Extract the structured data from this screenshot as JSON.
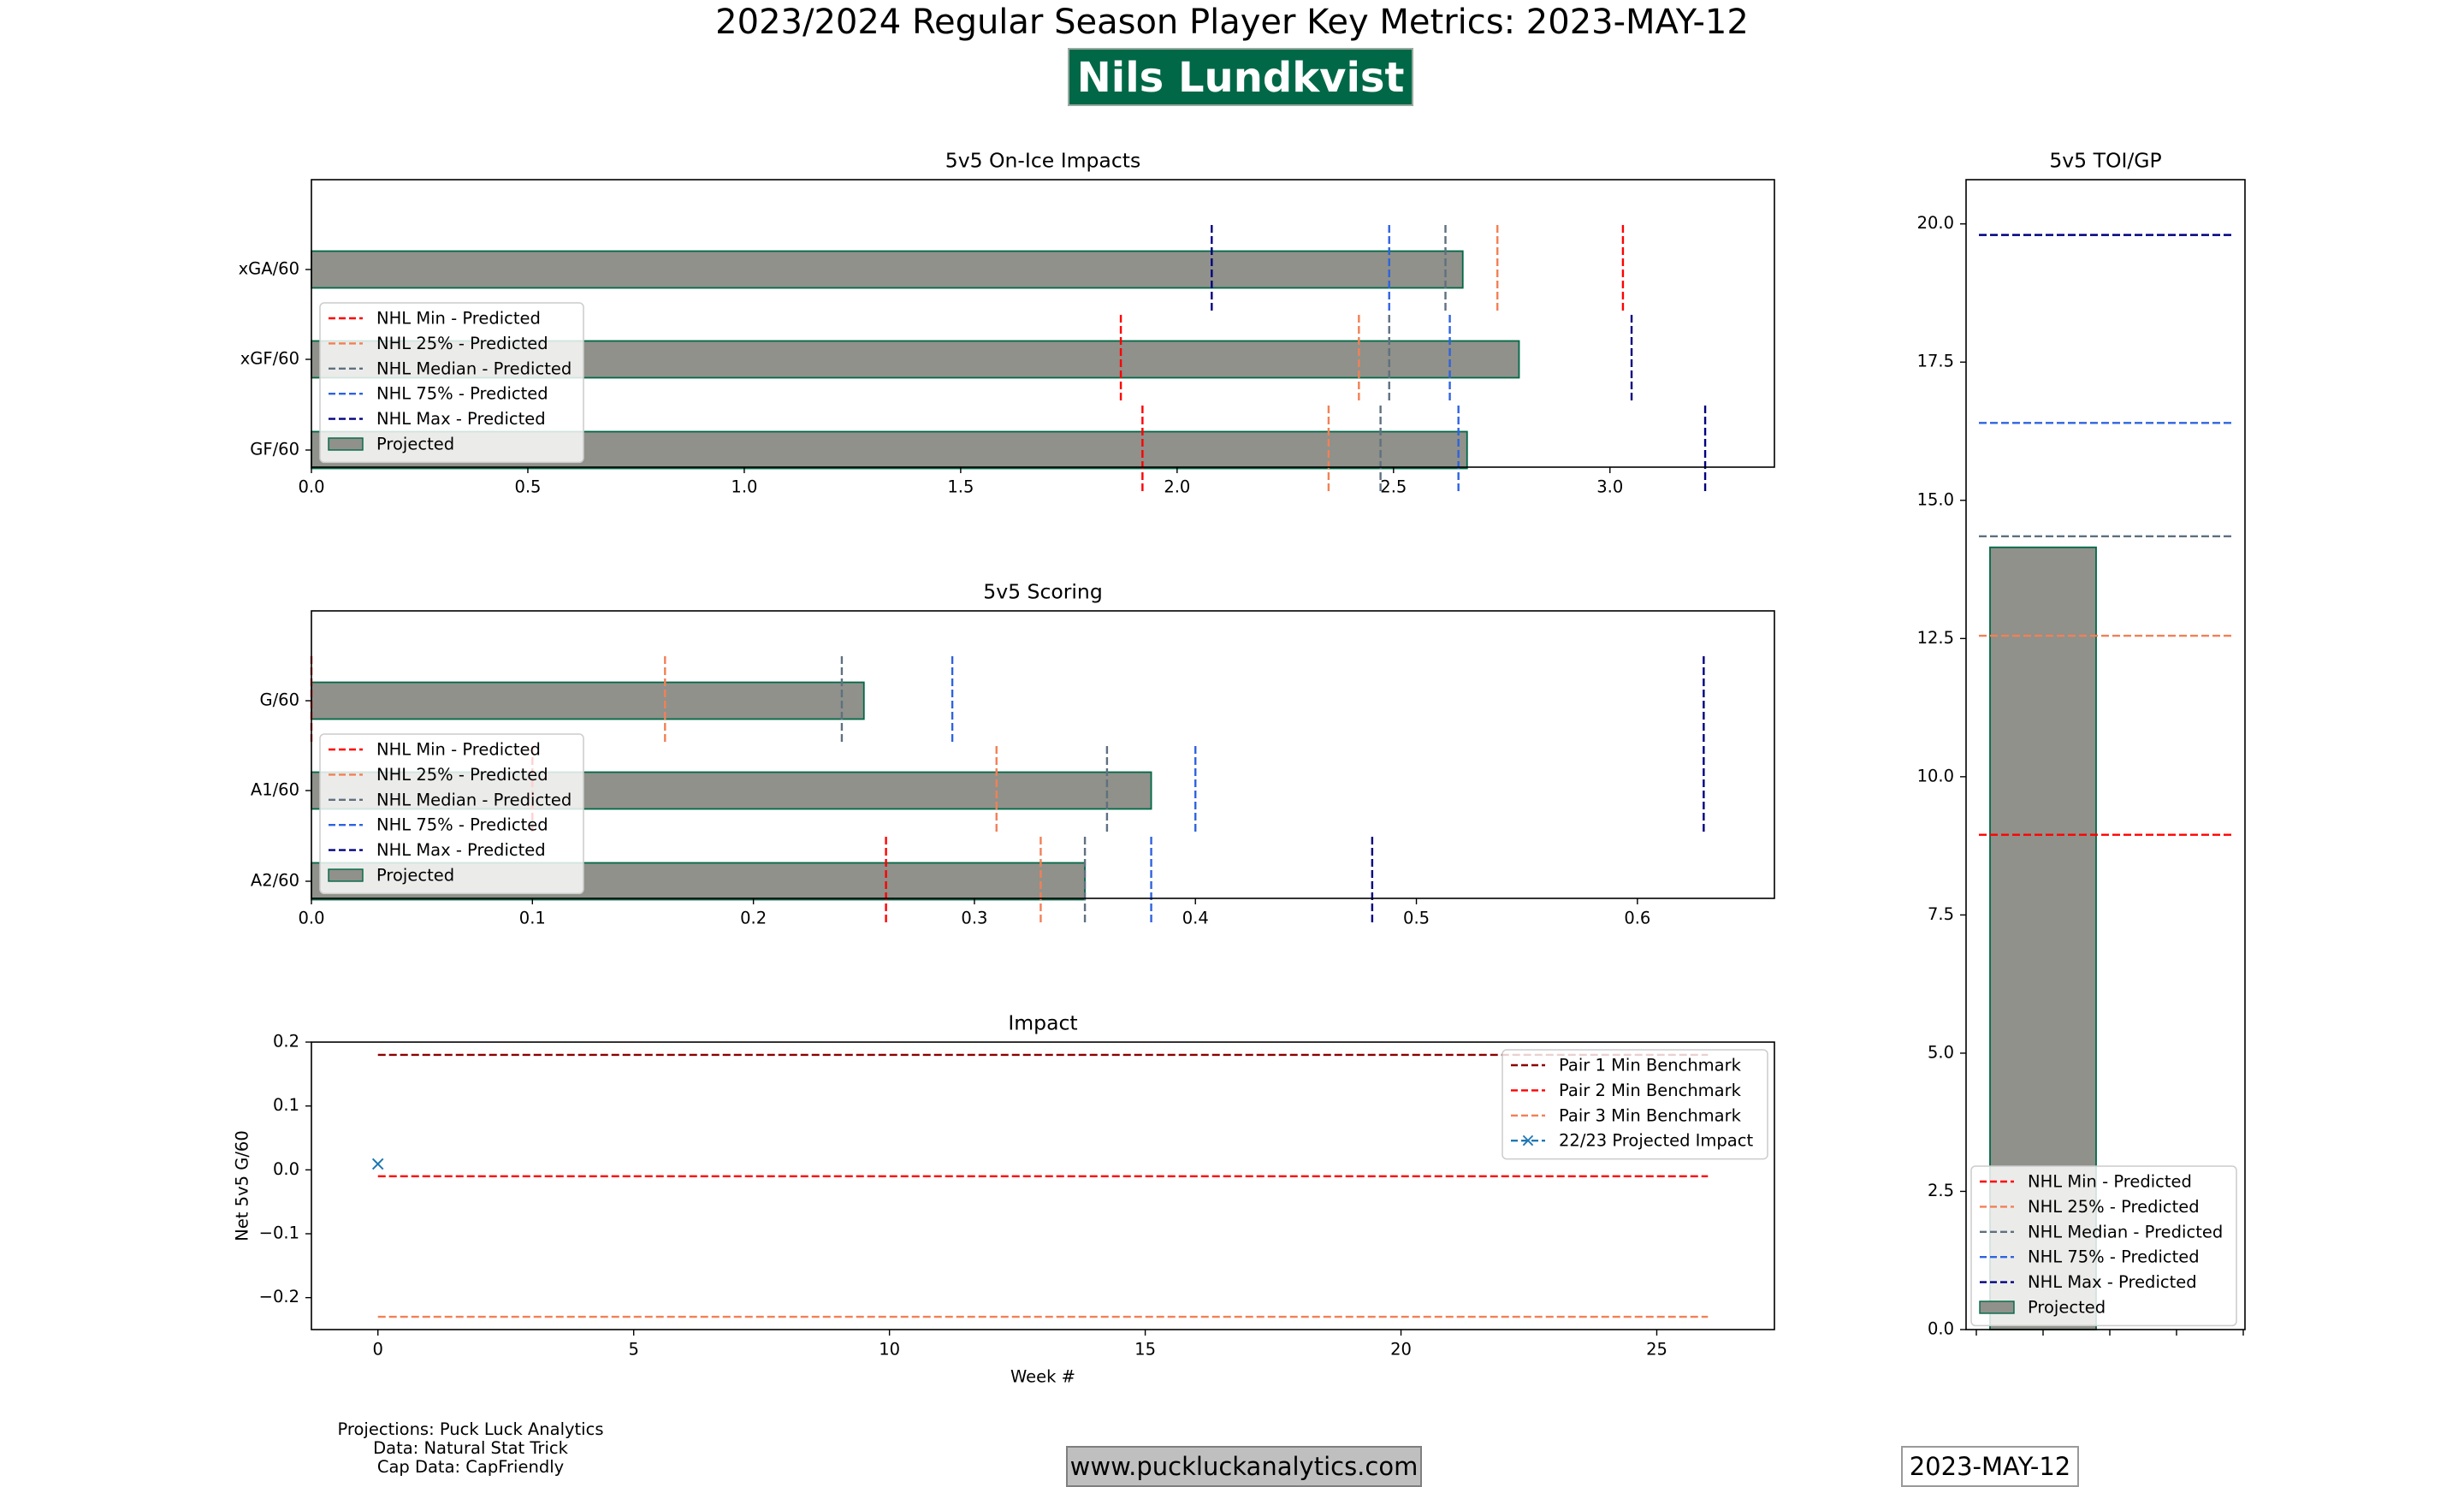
{
  "header": {
    "title": "2023/2024 Regular Season Player Key Metrics: 2023-MAY-12",
    "player": "Nils Lundkvist"
  },
  "footer": {
    "credits": [
      "Projections: Puck Luck Analytics",
      "Data: Natural Stat Trick",
      "Cap Data: CapFriendly"
    ],
    "url": "www.puckluckanalytics.com",
    "date": "2023-MAY-12"
  },
  "colors": {
    "bar_fill": "#8f918a",
    "bar_edge": "#006847",
    "nhl_min": "#ff0000",
    "nhl_25": "#f28055",
    "nhl_median": "#5f7080",
    "nhl_75": "#2e63e0",
    "nhl_max": "#00007f",
    "pair1": "#8b0000",
    "pair2": "#ff0000",
    "pair3": "#f28055",
    "impact": "#1f77b4"
  },
  "chart_data": [
    {
      "id": "onice",
      "type": "bar",
      "orientation": "horizontal",
      "title": "5v5 On-Ice Impacts",
      "categories": [
        "xGA/60",
        "xGF/60",
        "GF/60"
      ],
      "xlim": [
        0,
        3.38
      ],
      "xticks": [
        0.0,
        0.5,
        1.0,
        1.5,
        2.0,
        2.5,
        3.0
      ],
      "xtick_labels": [
        "0.0",
        "0.5",
        "1.0",
        "1.5",
        "2.0",
        "2.5",
        "3.0"
      ],
      "projected": [
        2.66,
        2.79,
        2.67
      ],
      "benchmarks": [
        {
          "name": "NHL Min - Predicted",
          "color_key": "nhl_min",
          "values": [
            3.03,
            1.87,
            1.92
          ]
        },
        {
          "name": "NHL 25% - Predicted",
          "color_key": "nhl_25",
          "values": [
            2.74,
            2.42,
            2.35
          ]
        },
        {
          "name": "NHL Median - Predicted",
          "color_key": "nhl_median",
          "values": [
            2.62,
            2.49,
            2.47
          ]
        },
        {
          "name": "NHL 75% - Predicted",
          "color_key": "nhl_75",
          "values": [
            2.49,
            2.63,
            2.65
          ]
        },
        {
          "name": "NHL Max - Predicted",
          "color_key": "nhl_max",
          "values": [
            2.08,
            3.05,
            3.22
          ]
        }
      ],
      "legend": [
        "NHL Min - Predicted",
        "NHL 25% - Predicted",
        "NHL Median - Predicted",
        "NHL 75% - Predicted",
        "NHL Max - Predicted",
        "Projected"
      ],
      "legend_loc": "center-left"
    },
    {
      "id": "scoring",
      "type": "bar",
      "orientation": "horizontal",
      "title": "5v5 Scoring",
      "categories": [
        "G/60",
        "A1/60",
        "A2/60"
      ],
      "xlim": [
        0,
        0.662
      ],
      "xticks": [
        0.0,
        0.1,
        0.2,
        0.3,
        0.4,
        0.5,
        0.6
      ],
      "xtick_labels": [
        "0.0",
        "0.1",
        "0.2",
        "0.3",
        "0.4",
        "0.5",
        "0.6"
      ],
      "projected": [
        0.25,
        0.38,
        0.35
      ],
      "benchmarks": [
        {
          "name": "NHL Min - Predicted",
          "color_key": "nhl_min",
          "values": [
            0.0,
            0.1,
            0.26
          ]
        },
        {
          "name": "NHL 25% - Predicted",
          "color_key": "nhl_25",
          "values": [
            0.16,
            0.31,
            0.33
          ]
        },
        {
          "name": "NHL Median - Predicted",
          "color_key": "nhl_median",
          "values": [
            0.24,
            0.36,
            0.35
          ]
        },
        {
          "name": "NHL 75% - Predicted",
          "color_key": "nhl_75",
          "values": [
            0.29,
            0.4,
            0.38
          ]
        },
        {
          "name": "NHL Max - Predicted",
          "color_key": "nhl_max",
          "values": [
            0.63,
            0.63,
            0.48
          ]
        }
      ],
      "legend": [
        "NHL Min - Predicted",
        "NHL 25% - Predicted",
        "NHL Median - Predicted",
        "NHL 75% - Predicted",
        "NHL Max - Predicted",
        "Projected"
      ],
      "legend_loc": "lower-left"
    },
    {
      "id": "impact",
      "type": "line",
      "title": "Impact",
      "xlabel": "Week #",
      "ylabel": "Net 5v5 G/60",
      "xlim": [
        -1.3,
        27.3
      ],
      "ylim": [
        -0.25,
        0.2
      ],
      "xticks": [
        0,
        5,
        10,
        15,
        20,
        25
      ],
      "xtick_labels": [
        "0",
        "5",
        "10",
        "15",
        "20",
        "25"
      ],
      "yticks": [
        0.2,
        0.1,
        0.0,
        -0.1,
        -0.2
      ],
      "ytick_labels": [
        "0.2",
        "0.1",
        "0.0",
        "−0.1",
        "−0.2"
      ],
      "series": [
        {
          "name": "Pair 1 Min Benchmark",
          "color_key": "pair1",
          "style": "dashed",
          "x": [
            0,
            26
          ],
          "y": [
            0.18,
            0.18
          ]
        },
        {
          "name": "Pair 2 Min Benchmark",
          "color_key": "pair2",
          "style": "dashed",
          "x": [
            0,
            26
          ],
          "y": [
            -0.01,
            -0.01
          ]
        },
        {
          "name": "Pair 3 Min Benchmark",
          "color_key": "pair3",
          "style": "dashed",
          "x": [
            0,
            26
          ],
          "y": [
            -0.23,
            -0.23
          ]
        },
        {
          "name": "22/23 Projected Impact",
          "color_key": "impact",
          "style": "marker-x",
          "x": [
            0
          ],
          "y": [
            0.01
          ]
        }
      ],
      "legend_loc": "top-right"
    },
    {
      "id": "toi",
      "type": "bar",
      "orientation": "vertical",
      "title": "5v5 TOI/GP",
      "ylim": [
        0,
        20.8
      ],
      "yticks": [
        0.0,
        2.5,
        5.0,
        7.5,
        10.0,
        12.5,
        15.0,
        17.5,
        20.0
      ],
      "ytick_labels": [
        "0.0",
        "2.5",
        "5.0",
        "7.5",
        "10.0",
        "12.5",
        "15.0",
        "17.5",
        "20.0"
      ],
      "projected": 14.15,
      "benchmarks": [
        {
          "name": "NHL Min - Predicted",
          "color_key": "nhl_min",
          "value": 8.95
        },
        {
          "name": "NHL 25% - Predicted",
          "color_key": "nhl_25",
          "value": 12.55
        },
        {
          "name": "NHL Median - Predicted",
          "color_key": "nhl_median",
          "value": 14.35
        },
        {
          "name": "NHL 75% - Predicted",
          "color_key": "nhl_75",
          "value": 16.4
        },
        {
          "name": "NHL Max - Predicted",
          "color_key": "nhl_max",
          "value": 19.8
        }
      ],
      "legend": [
        "NHL Min - Predicted",
        "NHL 25% - Predicted",
        "NHL Median - Predicted",
        "NHL 75% - Predicted",
        "NHL Max - Predicted",
        "Projected"
      ],
      "legend_loc": "lower-center"
    }
  ]
}
